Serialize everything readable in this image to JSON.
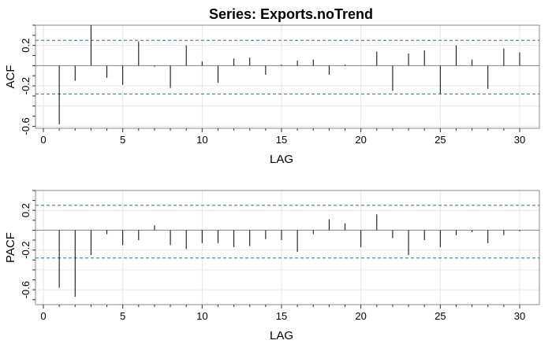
{
  "title": "Series:  Exports.noTrend",
  "colors": {
    "background": "#ffffff",
    "grid": "#e6e6e6",
    "frame": "#888888",
    "spike": "#000000",
    "ci_line": "#1f6fa3"
  },
  "chart_data": [
    {
      "type": "bar",
      "name": "ACF",
      "xlabel": "LAG",
      "ylabel": "ACF",
      "xlim": [
        0,
        30
      ],
      "ylim": [
        -0.62,
        0.4
      ],
      "grid": true,
      "xticks": [
        0,
        5,
        10,
        15,
        20,
        25,
        30
      ],
      "yticks": [
        -0.6,
        -0.2,
        0.2
      ],
      "ci": [
        0.25,
        -0.28
      ],
      "lags": [
        1,
        2,
        3,
        4,
        5,
        6,
        7,
        8,
        9,
        10,
        11,
        12,
        13,
        14,
        15,
        16,
        17,
        18,
        19,
        20,
        21,
        22,
        23,
        24,
        25,
        26,
        27,
        28,
        29,
        30
      ],
      "values": [
        -0.58,
        -0.15,
        0.4,
        -0.12,
        -0.19,
        0.24,
        -0.01,
        -0.22,
        0.2,
        0.04,
        -0.17,
        0.07,
        0.08,
        -0.09,
        0.01,
        0.05,
        0.06,
        -0.09,
        0.01,
        0.0,
        0.14,
        -0.25,
        0.12,
        0.15,
        -0.28,
        0.2,
        0.06,
        -0.23,
        0.17,
        0.13
      ]
    },
    {
      "type": "bar",
      "name": "PACF",
      "xlabel": "LAG",
      "ylabel": "PACF",
      "xlim": [
        0,
        30
      ],
      "ylim": [
        -0.75,
        0.4
      ],
      "grid": true,
      "xticks": [
        0,
        5,
        10,
        15,
        20,
        25,
        30
      ],
      "yticks": [
        -0.6,
        -0.2,
        0.2
      ],
      "ci": [
        0.25,
        -0.28
      ],
      "lags": [
        1,
        2,
        3,
        4,
        5,
        6,
        7,
        8,
        9,
        10,
        11,
        12,
        13,
        14,
        15,
        16,
        17,
        18,
        19,
        20,
        21,
        22,
        23,
        24,
        25,
        26,
        27,
        28,
        29,
        30
      ],
      "values": [
        -0.58,
        -0.67,
        -0.25,
        -0.04,
        -0.15,
        -0.1,
        0.05,
        -0.15,
        -0.19,
        -0.13,
        -0.13,
        -0.17,
        -0.16,
        -0.09,
        -0.1,
        -0.22,
        -0.04,
        0.11,
        0.07,
        -0.17,
        0.16,
        -0.08,
        -0.25,
        -0.1,
        -0.17,
        -0.05,
        -0.02,
        -0.13,
        -0.05,
        -0.01
      ]
    }
  ]
}
